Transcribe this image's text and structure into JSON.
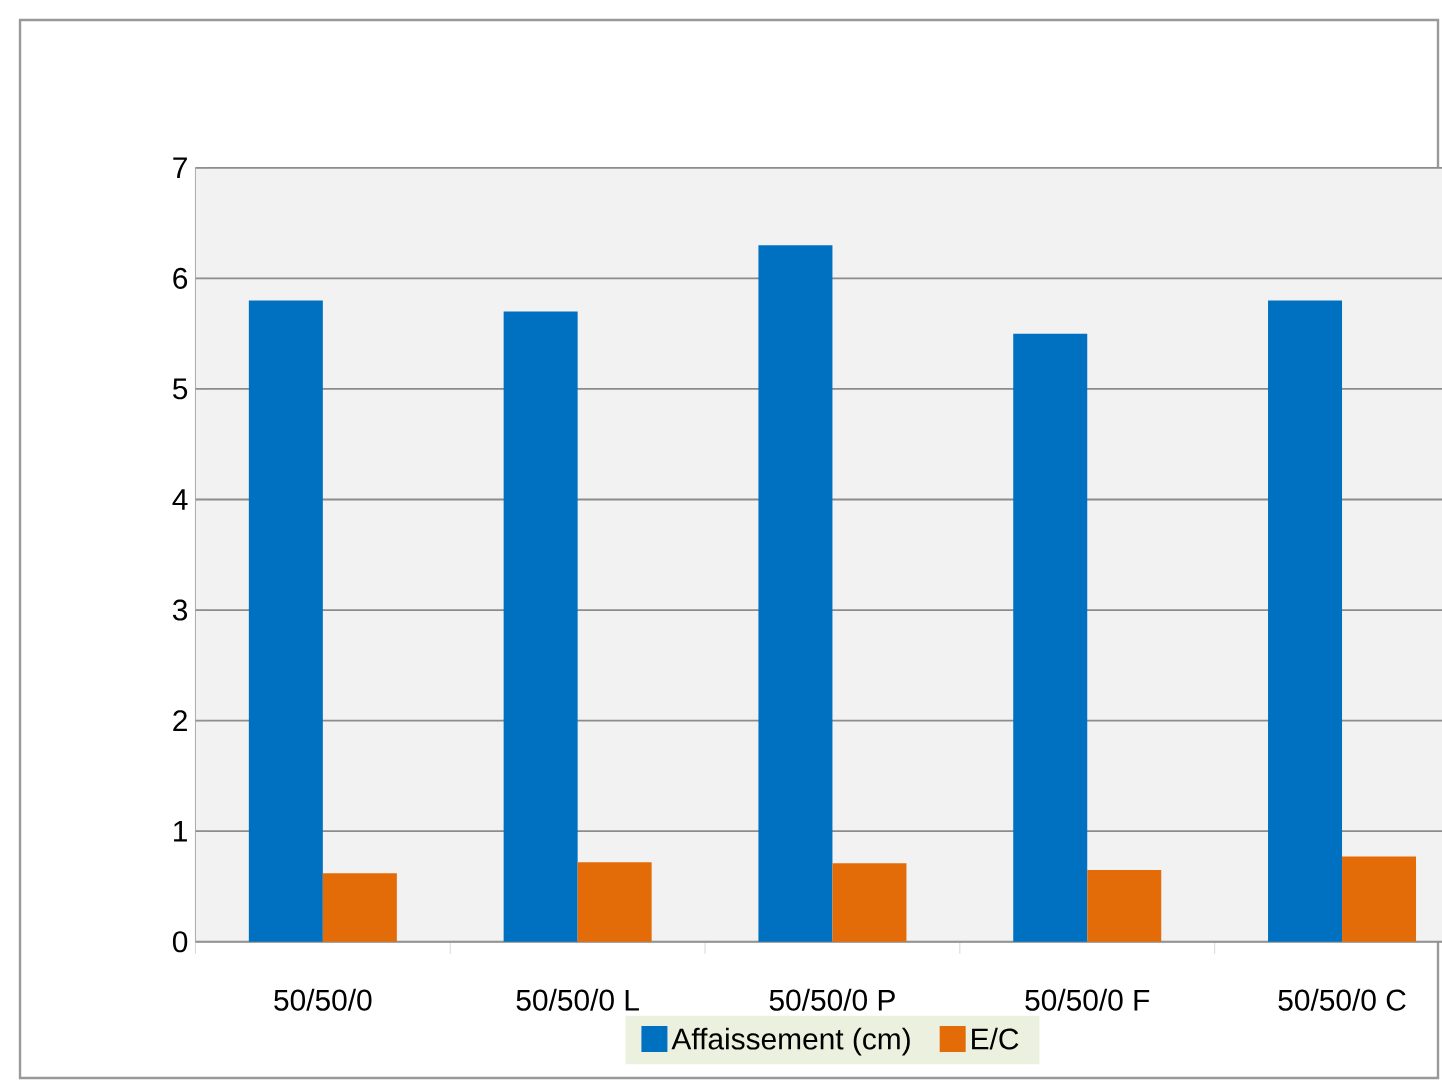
{
  "chart_data": {
    "type": "bar",
    "categories": [
      "50/50/0",
      "50/50/0 L",
      "50/50/0 P",
      "50/50/0 F",
      "50/50/0 C"
    ],
    "series": [
      {
        "name": "Affaissement (cm)",
        "color": "#0070c0",
        "values": [
          5.8,
          5.7,
          6.3,
          5.5,
          5.8
        ]
      },
      {
        "name": "E/C",
        "color": "#e36c09",
        "values": [
          0.62,
          0.72,
          0.71,
          0.65,
          0.77
        ]
      }
    ],
    "ylim": [
      0,
      7
    ],
    "yticks": [
      0,
      1,
      2,
      3,
      4,
      5,
      6,
      7
    ],
    "grid": "y",
    "legend": "bottom"
  }
}
